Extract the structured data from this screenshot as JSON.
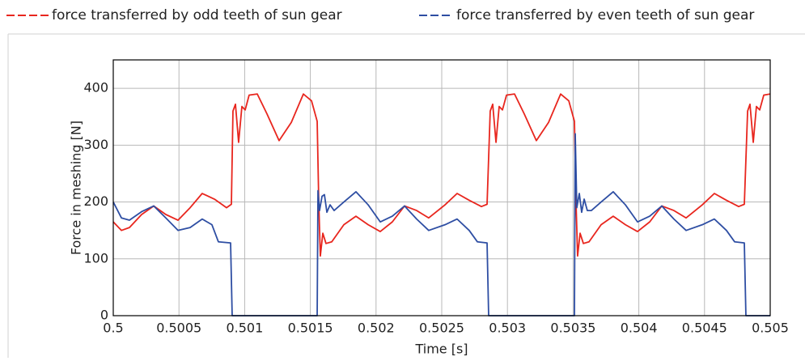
{
  "chart_data": {
    "type": "line",
    "xlabel": "Time [s]",
    "ylabel": "Force in meshing [N]",
    "xlim": [
      0.5,
      0.505
    ],
    "xticks": [
      0.5,
      0.5005,
      0.501,
      0.5015,
      0.502,
      0.5025,
      0.503,
      0.5035,
      0.504,
      0.5045,
      0.505
    ],
    "ylim": [
      0,
      450
    ],
    "yticks": [
      0,
      100,
      200,
      300,
      400
    ],
    "grid": true,
    "legend": "top",
    "series": [
      {
        "name": "force transferred by odd teeth of sun gear",
        "color": "#e8261e",
        "x": [
          0.5,
          0.500062,
          0.500123,
          0.500216,
          0.500308,
          0.5004,
          0.500493,
          0.500585,
          0.500677,
          0.50077,
          0.500862,
          0.500899,
          0.500911,
          0.50093,
          0.500954,
          0.500979,
          0.501004,
          0.501034,
          0.501096,
          0.50117,
          0.501262,
          0.501355,
          0.501447,
          0.501509,
          0.501552,
          0.501564,
          0.501576,
          0.501595,
          0.501619,
          0.501663,
          0.501755,
          0.501847,
          0.50194,
          0.502032,
          0.502124,
          0.502217,
          0.502309,
          0.502401,
          0.502525,
          0.502617,
          0.502709,
          0.502802,
          0.502845,
          0.502869,
          0.502888,
          0.502913,
          0.502937,
          0.502962,
          0.502993,
          0.503054,
          0.503128,
          0.50322,
          0.503313,
          0.503405,
          0.503467,
          0.50351,
          0.503522,
          0.503534,
          0.503553,
          0.503578,
          0.503621,
          0.503713,
          0.503805,
          0.503898,
          0.50399,
          0.504083,
          0.504175,
          0.504267,
          0.50436,
          0.504483,
          0.504575,
          0.504667,
          0.50476,
          0.504803,
          0.504828,
          0.504846,
          0.504871,
          0.504895,
          0.50492,
          0.504951,
          0.505
        ],
        "values": [
          165,
          150,
          155,
          178,
          193,
          178,
          168,
          190,
          215,
          205,
          190,
          196,
          360,
          372,
          305,
          368,
          362,
          388,
          390,
          355,
          308,
          340,
          390,
          378,
          342,
          200,
          105,
          145,
          127,
          130,
          160,
          175,
          160,
          148,
          165,
          193,
          185,
          172,
          195,
          215,
          203,
          192,
          196,
          360,
          372,
          305,
          368,
          362,
          388,
          390,
          355,
          308,
          340,
          390,
          378,
          342,
          200,
          105,
          145,
          127,
          130,
          160,
          175,
          160,
          148,
          165,
          193,
          185,
          172,
          195,
          215,
          203,
          192,
          196,
          360,
          372,
          305,
          368,
          362,
          388,
          390
        ]
      },
      {
        "name": "force transferred by even teeth of sun gear",
        "color": "#2e4ea3",
        "x": [
          0.5,
          0.500062,
          0.500123,
          0.500216,
          0.500308,
          0.5004,
          0.500493,
          0.500585,
          0.500677,
          0.500751,
          0.5008,
          0.500893,
          0.500905,
          0.501552,
          0.501558,
          0.50157,
          0.501589,
          0.501607,
          0.501626,
          0.50165,
          0.501681,
          0.501755,
          0.501847,
          0.50194,
          0.502032,
          0.502124,
          0.502217,
          0.502309,
          0.502401,
          0.502525,
          0.502617,
          0.502709,
          0.502771,
          0.502845,
          0.502857,
          0.50351,
          0.503516,
          0.503528,
          0.503547,
          0.503565,
          0.503584,
          0.503608,
          0.503639,
          0.503713,
          0.503805,
          0.503898,
          0.50399,
          0.504083,
          0.504175,
          0.504267,
          0.50436,
          0.504483,
          0.504575,
          0.504667,
          0.504729,
          0.504803,
          0.504815,
          0.505
        ],
        "values": [
          200,
          172,
          168,
          183,
          193,
          172,
          150,
          155,
          170,
          160,
          130,
          128,
          0,
          0,
          220,
          185,
          210,
          213,
          182,
          195,
          185,
          200,
          218,
          195,
          165,
          175,
          193,
          170,
          150,
          160,
          170,
          150,
          130,
          128,
          0,
          0,
          320,
          190,
          215,
          182,
          205,
          185,
          185,
          200,
          218,
          195,
          165,
          175,
          193,
          170,
          150,
          160,
          170,
          150,
          130,
          128,
          0,
          0
        ]
      }
    ]
  }
}
